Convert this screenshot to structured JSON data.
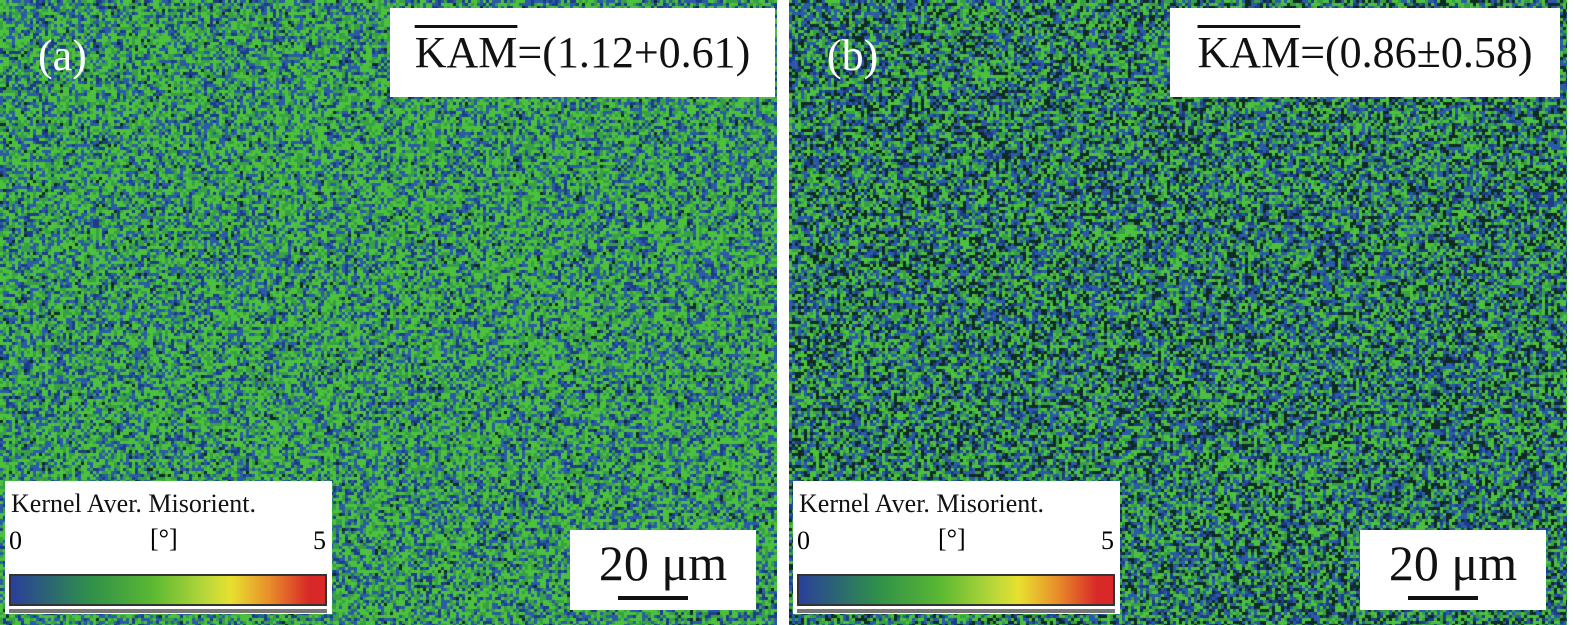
{
  "panels": [
    {
      "label": "(a)",
      "kam_symbol": "KAM",
      "kam_value": "=(1.12+0.61)",
      "legend": {
        "title": "Kernel Aver. Misorient.",
        "min": "0",
        "unit": "[°]",
        "max": "5"
      },
      "scale_bar": "20 μm"
    },
    {
      "label": "(b)",
      "kam_symbol": "KAM",
      "kam_value": "=(0.86±0.58)",
      "legend": {
        "title": "Kernel Aver. Misorient.",
        "min": "0",
        "unit": "[°]",
        "max": "5"
      },
      "scale_bar": "20 μm"
    }
  ],
  "colormap": [
    "#2a3f9a",
    "#2f8f4a",
    "#5ab832",
    "#b8d83a",
    "#e8e030",
    "#e8902a",
    "#d82828"
  ]
}
